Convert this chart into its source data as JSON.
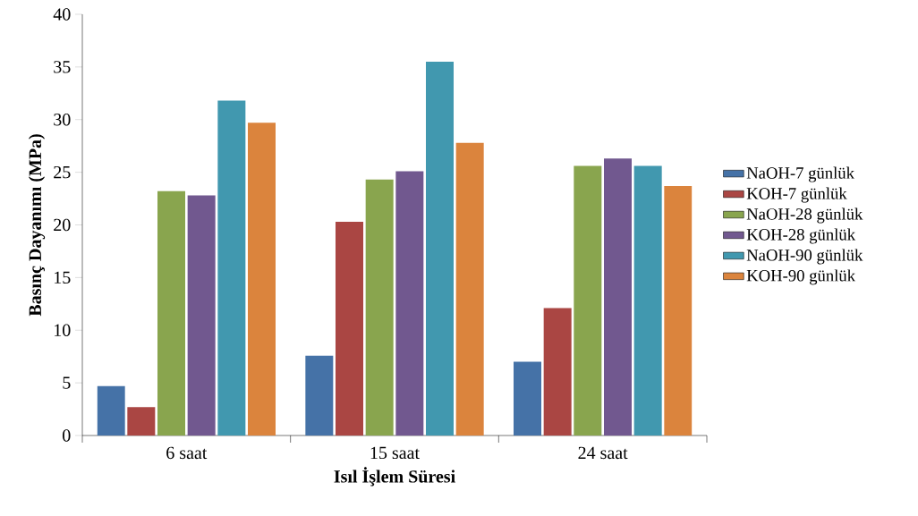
{
  "chart_data": {
    "type": "bar",
    "xlabel": "Isıl İşlem Süresi",
    "ylabel": "Basınç Dayanımı (MPa)",
    "categories": [
      "6 saat",
      "15 saat",
      "24 saat"
    ],
    "series": [
      {
        "name": "NaOH-7 günlük",
        "color": "#4572a7",
        "values": [
          4.7,
          7.6,
          7.0
        ]
      },
      {
        "name": "KOH-7 günlük",
        "color": "#aa4643",
        "values": [
          2.7,
          20.3,
          12.1
        ]
      },
      {
        "name": "NaOH-28 günlük",
        "color": "#89a54e",
        "values": [
          23.2,
          24.3,
          25.6
        ]
      },
      {
        "name": "KOH-28 günlük",
        "color": "#71588f",
        "values": [
          22.8,
          25.1,
          26.3
        ]
      },
      {
        "name": "NaOH-90 günlük",
        "color": "#4198af",
        "values": [
          31.8,
          35.5,
          25.6
        ]
      },
      {
        "name": "KOH-90 günlük",
        "color": "#db843d",
        "values": [
          29.7,
          27.8,
          23.7
        ]
      }
    ],
    "ylim": [
      0,
      40
    ],
    "yticks": [
      0,
      5,
      10,
      15,
      20,
      25,
      30,
      35,
      40
    ],
    "grid": false,
    "legend": "right"
  }
}
